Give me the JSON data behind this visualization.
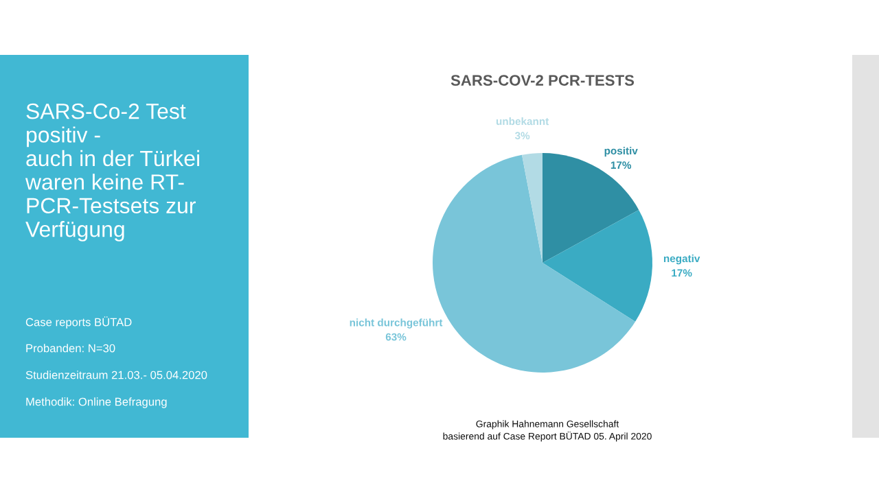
{
  "chart_data": {
    "type": "pie",
    "title": "SARS-COV-2 PCR-TESTS",
    "categories": [
      "positiv",
      "negativ",
      "nicht durchgeführt",
      "unbekannt"
    ],
    "values": [
      17,
      17,
      63,
      3
    ],
    "value_labels": [
      "17%",
      "17%",
      "63%",
      "3%"
    ],
    "colors": [
      "#2f8fa4",
      "#3aabc3",
      "#79c5d9",
      "#b2dbe5"
    ],
    "annotations": [
      "SARS-Co-2 Test\npositiv -\nauch in der Türkei\nwaren keine RT-\nPCR-Testsets zur\nVerfügung",
      "Case reports BÜTAD",
      "Probanden: N=30",
      "Studienzeitraum 21.03.- 05.04.2020",
      "Methodik: Online Befragung",
      "Graphik Hahnemann Gesellschaft\nbasierend auf Case Report BÜTAD 05. April 2020"
    ]
  }
}
